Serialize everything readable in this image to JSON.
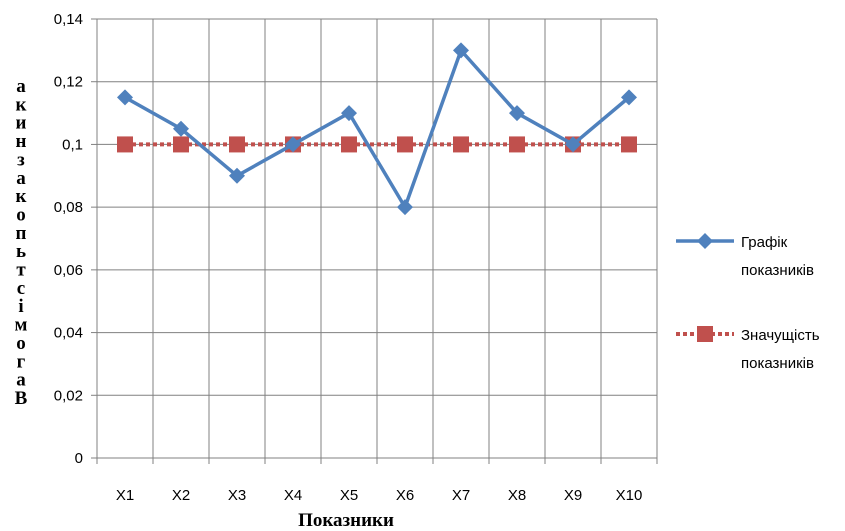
{
  "chart_data": {
    "type": "line",
    "categories": [
      "X1",
      "X2",
      "X3",
      "X4",
      "X5",
      "X6",
      "X7",
      "X8",
      "X9",
      "X10"
    ],
    "series": [
      {
        "name": "Графік показників",
        "values": [
          0.115,
          0.105,
          0.09,
          0.1,
          0.11,
          0.08,
          0.13,
          0.11,
          0.1,
          0.115
        ],
        "color": "#4F81BD",
        "marker": "diamond",
        "line_style": "solid"
      },
      {
        "name": "Значущість показників",
        "values": [
          0.1,
          0.1,
          0.1,
          0.1,
          0.1,
          0.1,
          0.1,
          0.1,
          0.1,
          0.1
        ],
        "color": "#C0504D",
        "marker": "square",
        "line_style": "dashed"
      }
    ],
    "y_ticks": [
      "0",
      "0,02",
      "0,04",
      "0,06",
      "0,08",
      "0,1",
      "0,12",
      "0,14"
    ],
    "ylim": [
      0,
      0.14
    ],
    "xlabel": "Показники",
    "ylabel": "Вагомість показника",
    "grid": true,
    "legend_position": "right",
    "legend": [
      {
        "lines": [
          "Графік",
          "показників"
        ]
      },
      {
        "lines": [
          "Значущість",
          "показників"
        ]
      }
    ]
  }
}
